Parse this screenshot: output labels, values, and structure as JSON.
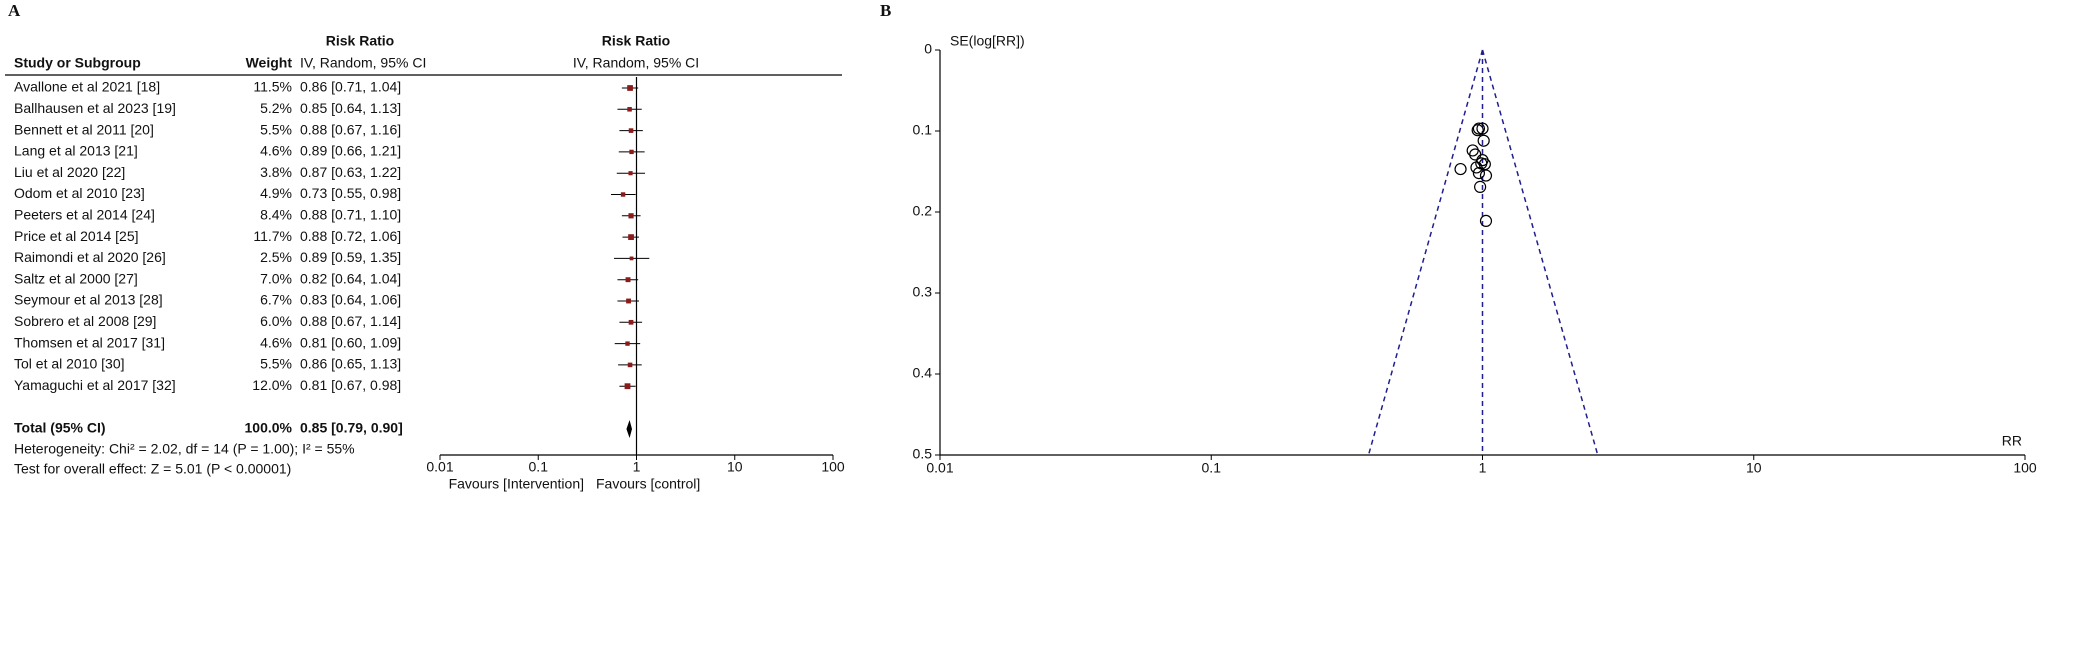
{
  "chart_data": [
    {
      "type": "forest",
      "panel_label": "A",
      "study_header": "Study or Subgroup",
      "weight_header": "Weight",
      "table_title": "Risk Ratio",
      "table_subtitle": "IV, Random, 95% CI",
      "plot_title": "Risk Ratio",
      "plot_subtitle": "IV, Random, 95% CI",
      "categories": [
        "Avallone et al 2021 [18]",
        "Ballhausen et al 2023 [19]",
        "Bennett et al 2011 [20]",
        "Lang et al 2013 [21]",
        "Liu et al 2020 [22]",
        "Odom et al 2010 [23]",
        "Peeters et al 2014 [24]",
        "Price et al 2014 [25]",
        "Raimondi et al 2020 [26]",
        "Saltz et al 2000 [27]",
        "Seymour et al 2013 [28]",
        "Sobrero et al 2008 [29]",
        "Thomsen et al 2017 [31]",
        "Tol et al 2010 [30]",
        "Yamaguchi et al 2017 [32]"
      ],
      "weights": [
        11.5,
        5.2,
        5.5,
        4.6,
        3.8,
        4.9,
        8.4,
        11.7,
        2.5,
        7.0,
        6.7,
        6.0,
        4.6,
        5.5,
        12.0
      ],
      "weight_labels": [
        "11.5%",
        "5.2%",
        "5.5%",
        "4.6%",
        "3.8%",
        "4.9%",
        "8.4%",
        "11.7%",
        "2.5%",
        "7.0%",
        "6.7%",
        "6.0%",
        "4.6%",
        "5.5%",
        "12.0%"
      ],
      "values": [
        0.86,
        0.85,
        0.88,
        0.89,
        0.87,
        0.73,
        0.88,
        0.88,
        0.89,
        0.82,
        0.83,
        0.88,
        0.81,
        0.86,
        0.81
      ],
      "lower": [
        0.71,
        0.64,
        0.67,
        0.66,
        0.63,
        0.55,
        0.71,
        0.72,
        0.59,
        0.64,
        0.64,
        0.67,
        0.6,
        0.65,
        0.67
      ],
      "upper": [
        1.04,
        1.13,
        1.16,
        1.21,
        1.22,
        0.98,
        1.1,
        1.06,
        1.35,
        1.04,
        1.06,
        1.14,
        1.09,
        1.13,
        0.98
      ],
      "value_labels": [
        "0.86 [0.71, 1.04]",
        "0.85 [0.64, 1.13]",
        "0.88 [0.67, 1.16]",
        "0.89 [0.66, 1.21]",
        "0.87 [0.63, 1.22]",
        "0.73 [0.55, 0.98]",
        "0.88 [0.71, 1.10]",
        "0.88 [0.72, 1.06]",
        "0.89 [0.59, 1.35]",
        "0.82 [0.64, 1.04]",
        "0.83 [0.64, 1.06]",
        "0.88 [0.67, 1.14]",
        "0.81 [0.60, 1.09]",
        "0.86 [0.65, 1.13]",
        "0.81 [0.67, 0.98]"
      ],
      "total": {
        "label": "Total (95% CI)",
        "weight": 100.0,
        "weight_label": "100.0%",
        "value": 0.85,
        "lower": 0.79,
        "upper": 0.9,
        "value_label": "0.85 [0.79, 0.90]"
      },
      "heterogeneity": "Heterogeneity: Chi² = 2.02, df = 14 (P = 1.00); I² = 55%",
      "overall_effect": "Test for overall effect: Z = 5.01 (P < 0.00001)",
      "x_log": true,
      "xlim": [
        0.01,
        100
      ],
      "xticks": [
        0.01,
        0.1,
        1,
        10,
        100
      ],
      "favours_left": "Favours [Intervention]",
      "favours_right": "Favours [control]",
      "color": "#8b1a1a"
    },
    {
      "type": "funnel",
      "panel_label": "B",
      "ylabel": "SE(log[RR])",
      "xlabel": "RR",
      "x": [
        0.97,
        0.95,
        0.99,
        1.03,
        0.98,
        0.83,
        1.01,
        0.96,
        1.03,
        0.92,
        0.94,
        1.0,
        0.97,
        1.02,
        1.0
      ],
      "y": [
        0.097,
        0.145,
        0.14,
        0.155,
        0.169,
        0.147,
        0.112,
        0.099,
        0.211,
        0.124,
        0.129,
        0.136,
        0.152,
        0.141,
        0.097
      ],
      "center": 1,
      "funnel_base": [
        0.38,
        2.66
      ],
      "x_log": true,
      "xlim": [
        0.01,
        100
      ],
      "xticks": [
        0.01,
        0.1,
        1,
        10,
        100
      ],
      "ylim": [
        0,
        0.5
      ],
      "yticks": [
        0,
        0.1,
        0.2,
        0.3,
        0.4,
        0.5
      ],
      "y_inverted": true,
      "color": "#1f1f8f"
    }
  ]
}
